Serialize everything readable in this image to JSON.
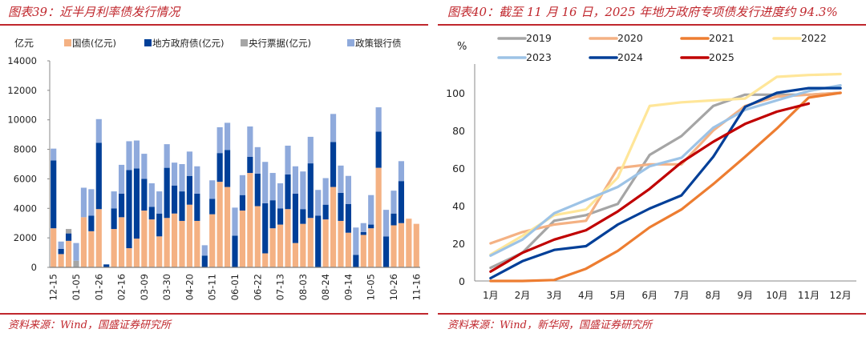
{
  "panels": {
    "left": {
      "title": "图表39：近半月利率债发行情况",
      "source": "资料来源：Wind，国盛证券研究所"
    },
    "right": {
      "title": "图表40：截至 11 月 16 日，2025 年地方政府专项债发行进度约 94.3%",
      "source": "资料来源：Wind，新华网，国盛证券研究所"
    }
  },
  "chart_data": [
    {
      "type": "bar",
      "stacked": true,
      "title": "近半月利率债发行情况",
      "ylabel": "亿元",
      "xlabel": "",
      "ylim": [
        0,
        14000
      ],
      "yticks": [
        0,
        2000,
        4000,
        6000,
        8000,
        10000,
        12000,
        14000
      ],
      "grid": false,
      "legend_position": "top",
      "xtick_labels": [
        "12-15",
        "01-05",
        "01-26",
        "02-16",
        "03-09",
        "03-30",
        "04-20",
        "05-11",
        "06-01",
        "06-22",
        "07-13",
        "08-03",
        "08-24",
        "09-14",
        "10-05",
        "10-26",
        "11-16"
      ],
      "xtick_every": 3,
      "categories_count": 49,
      "series": [
        {
          "name": "国债(亿元)",
          "color": "#f4b183",
          "values": [
            2650,
            900,
            1800,
            0,
            3400,
            2450,
            3950,
            0,
            2600,
            3400,
            1300,
            1950,
            3850,
            3250,
            2100,
            3350,
            3650,
            3150,
            4250,
            3150,
            0,
            3600,
            5800,
            5450,
            0,
            3850,
            6400,
            4150,
            950,
            2650,
            2900,
            3950,
            1650,
            2950,
            3350,
            0,
            3250,
            5450,
            3150,
            2350,
            0,
            2200,
            2650,
            6750,
            0,
            2850,
            3000,
            3300,
            2950
          ],
          "note_values": "placeholder order per bar"
        },
        {
          "name": "地方政府债(亿元)",
          "color": "#003f98",
          "values": [
            4600,
            350,
            500,
            0,
            0,
            1050,
            4500,
            200,
            1400,
            1600,
            5300,
            4750,
            2150,
            850,
            1550,
            3400,
            1900,
            2000,
            1950,
            1850,
            800,
            1050,
            1950,
            2500,
            2150,
            1050,
            1100,
            2200,
            3400,
            1900,
            1100,
            2350,
            3350,
            1000,
            3700,
            3500,
            1000,
            3050,
            1900,
            1950,
            850,
            200,
            250,
            2450,
            2100,
            800,
            2850,
            0,
            0
          ],
          "note_values": ""
        },
        {
          "name": "央行票据(亿元)",
          "color": "#a5a5a5",
          "values": [
            0,
            0,
            300,
            450,
            0,
            0,
            0,
            0,
            0,
            0,
            0,
            0,
            0,
            0,
            0,
            0,
            0,
            0,
            0,
            0,
            0,
            0,
            0,
            0,
            0,
            0,
            0,
            0,
            0,
            0,
            0,
            0,
            0,
            0,
            0,
            0,
            0,
            0,
            0,
            0,
            0,
            0,
            0,
            0,
            0,
            0,
            0,
            0,
            0
          ],
          "note_values": ""
        },
        {
          "name": "政策银行债",
          "color": "#8faadc",
          "values": [
            800,
            500,
            0,
            1200,
            2000,
            1800,
            1600,
            0,
            1150,
            1950,
            1950,
            1900,
            1700,
            1600,
            1500,
            1600,
            1550,
            1850,
            1650,
            1850,
            700,
            1250,
            1750,
            1850,
            1900,
            1350,
            2050,
            1800,
            2800,
            1850,
            1700,
            1950,
            1850,
            2550,
            1800,
            1750,
            1800,
            1900,
            1850,
            1900,
            1850,
            600,
            2000,
            1650,
            1800,
            1550,
            1350,
            0,
            0
          ]
        }
      ]
    },
    {
      "type": "line",
      "title": "截至 11 月 16 日，2025 年地方政府专项债发行进度约 94.3%",
      "ylabel": "%",
      "xlabel": "",
      "ylim": [
        0,
        110
      ],
      "yticks": [
        0,
        20,
        40,
        60,
        80,
        100
      ],
      "grid": false,
      "legend_position": "top",
      "categories": [
        "1月",
        "2月",
        "3月",
        "4月",
        "5月",
        "6月",
        "7月",
        "8月",
        "9月",
        "10月",
        "11月",
        "12月"
      ],
      "series": [
        {
          "name": "2019",
          "color": "#a5a5a5",
          "values": [
            7,
            15,
            32,
            35,
            41,
            67,
            77,
            93,
            99,
            99,
            99,
            100
          ]
        },
        {
          "name": "2020",
          "color": "#f4b183",
          "values": [
            20,
            26,
            30,
            32,
            60,
            62,
            62,
            80,
            93,
            98,
            99,
            100
          ]
        },
        {
          "name": "2021",
          "color": "#ed7d31",
          "values": [
            0,
            0,
            0.5,
            6.5,
            16,
            28.5,
            38,
            51.5,
            66,
            81,
            97.5,
            100
          ]
        },
        {
          "name": "2022",
          "color": "#ffe699",
          "values": [
            14,
            24,
            35,
            38,
            55,
            93,
            95,
            96,
            97,
            108.5,
            109.5,
            110
          ]
        },
        {
          "name": "2023",
          "color": "#9dc3e6",
          "values": [
            13.5,
            22,
            36,
            43,
            50,
            61,
            65.5,
            81.5,
            91,
            96,
            101,
            104
          ]
        },
        {
          "name": "2024",
          "color": "#003f98",
          "values": [
            1.5,
            10.5,
            16.5,
            18.5,
            30,
            38.5,
            45.5,
            66,
            92.5,
            100,
            102.5,
            102.5
          ]
        },
        {
          "name": "2025",
          "color": "#c00000",
          "values": [
            5,
            15,
            22,
            27,
            37,
            49,
            63,
            74,
            83.5,
            90,
            94.3,
            null
          ]
        }
      ]
    }
  ]
}
